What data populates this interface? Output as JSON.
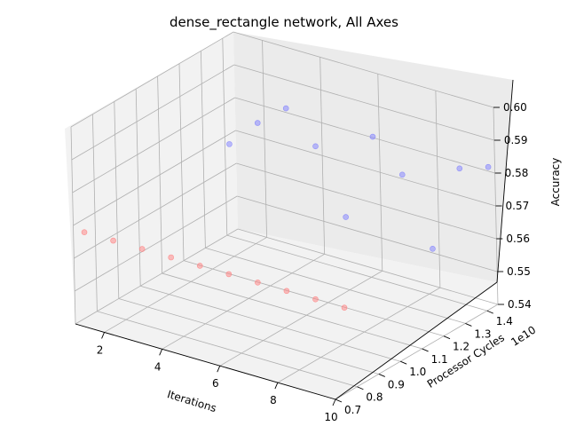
{
  "chart_data": {
    "type": "scatter",
    "title": "dense_rectangle network, All Axes",
    "xlabel": "Iterations",
    "ylabel": "Processor Cycles",
    "zlabel": "Accuracy",
    "y_offset_label": "1e10",
    "xlim": [
      1,
      10
    ],
    "ylim": [
      0.7,
      1.45
    ],
    "zlim": [
      0.54,
      0.6
    ],
    "x_ticks": [
      "2",
      "4",
      "6",
      "8",
      "10"
    ],
    "y_ticks": [
      "0.7",
      "0.8",
      "0.9",
      "1.0",
      "1.1",
      "1.2",
      "1.3",
      "1.4"
    ],
    "z_ticks": [
      "0.54",
      "0.55",
      "0.56",
      "0.57",
      "0.58",
      "0.59",
      "0.60"
    ],
    "grid": true,
    "colors": {
      "series_red": "#ff8080",
      "series_blue": "#8080ff",
      "pane": "#f2f2f2",
      "grid": "#b0b0b0"
    },
    "series": [
      {
        "color": "red",
        "points": [
          {
            "x": 1,
            "y": 0.75,
            "z": 0.566
          },
          {
            "x": 2,
            "y": 0.75,
            "z": 0.566
          },
          {
            "x": 3,
            "y": 0.75,
            "z": 0.566
          },
          {
            "x": 4,
            "y": 0.75,
            "z": 0.566
          },
          {
            "x": 5,
            "y": 0.75,
            "z": 0.566
          },
          {
            "x": 6,
            "y": 0.75,
            "z": 0.566
          },
          {
            "x": 7,
            "y": 0.75,
            "z": 0.566
          },
          {
            "x": 8,
            "y": 0.75,
            "z": 0.566
          },
          {
            "x": 9,
            "y": 0.75,
            "z": 0.566
          },
          {
            "x": 10,
            "y": 0.75,
            "z": 0.566
          }
        ]
      },
      {
        "color": "blue",
        "points": [
          {
            "x": 1,
            "y": 1.42,
            "z": 0.567
          },
          {
            "x": 2,
            "y": 1.42,
            "z": 0.576
          },
          {
            "x": 3,
            "y": 1.42,
            "z": 0.583
          },
          {
            "x": 4,
            "y": 1.42,
            "z": 0.574
          },
          {
            "x": 5,
            "y": 1.42,
            "z": 0.555
          },
          {
            "x": 6,
            "y": 1.42,
            "z": 0.582
          },
          {
            "x": 7,
            "y": 1.42,
            "z": 0.573
          },
          {
            "x": 8,
            "y": 1.42,
            "z": 0.553
          },
          {
            "x": 9,
            "y": 1.42,
            "z": 0.58
          },
          {
            "x": 10,
            "y": 1.42,
            "z": 0.583
          }
        ]
      }
    ]
  }
}
